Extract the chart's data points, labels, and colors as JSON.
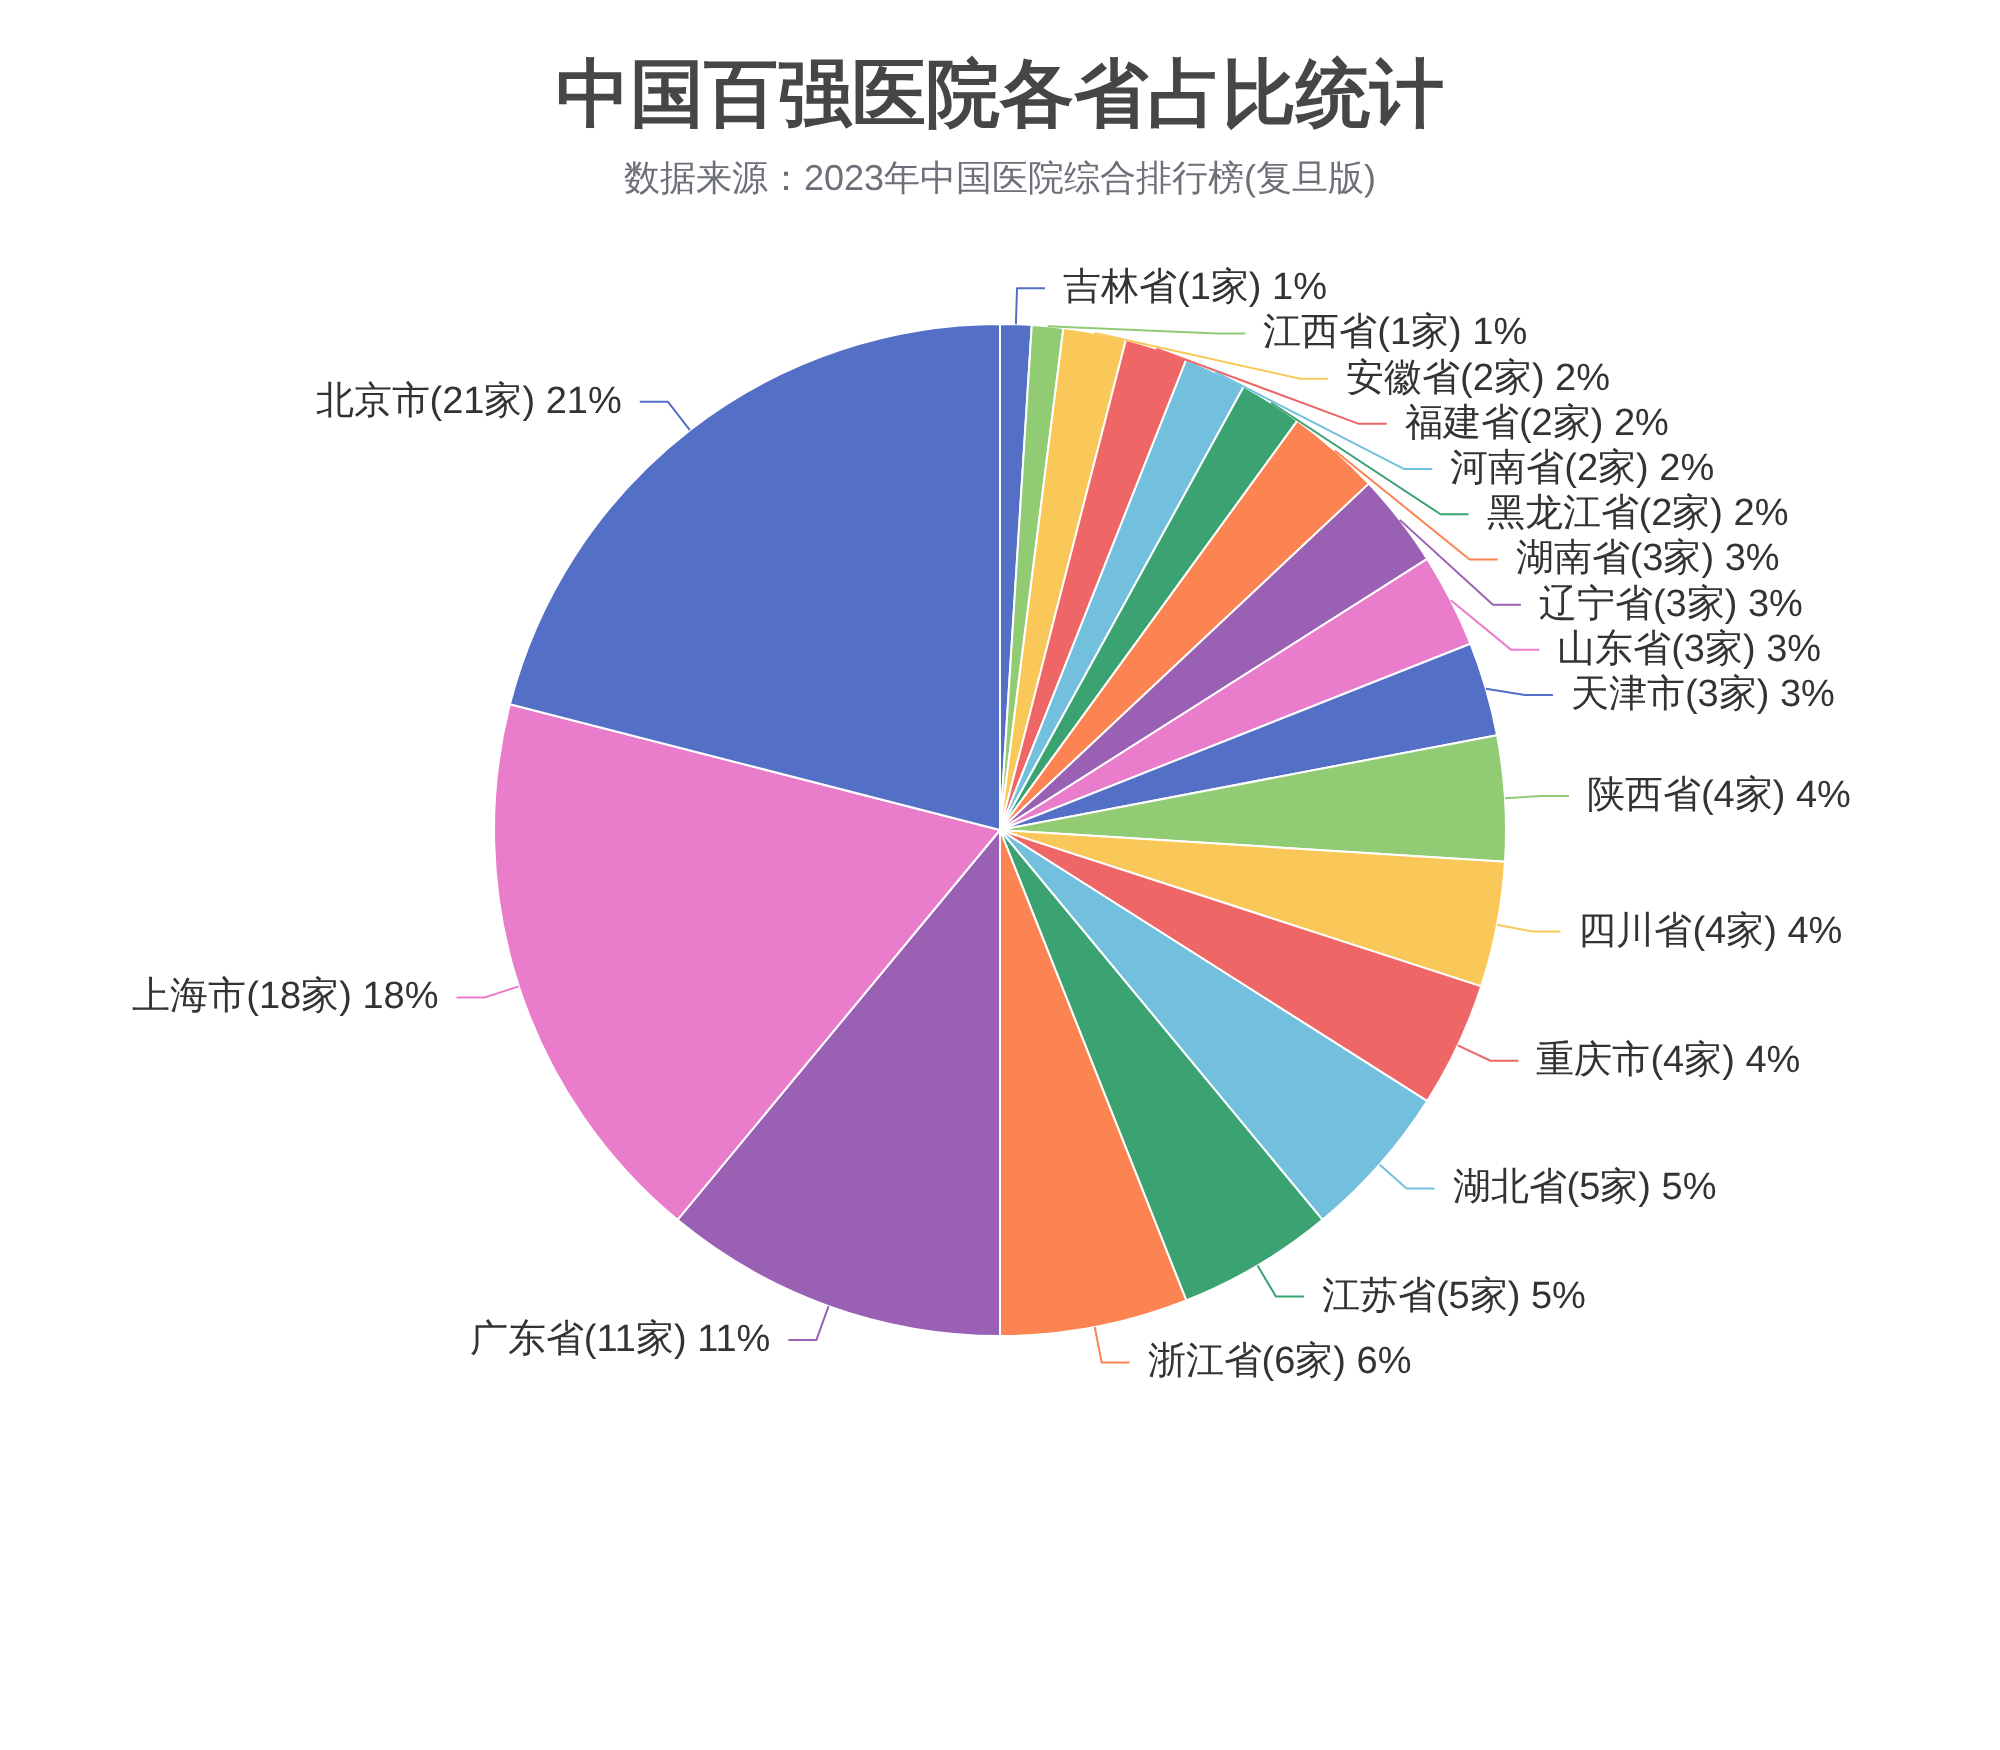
{
  "chart_data": {
    "type": "pie",
    "title": "中国百强医院各省占比统计",
    "subtitle": "数据来源：2023年中国医院综合排行榜(复旦版)",
    "categories": [
      "吉林省(1家)",
      "江西省(1家)",
      "安徽省(2家)",
      "福建省(2家)",
      "河南省(2家)",
      "黑龙江省(2家)",
      "湖南省(3家)",
      "辽宁省(3家)",
      "山东省(3家)",
      "天津市(3家)",
      "陕西省(4家)",
      "四川省(4家)",
      "重庆市(4家)",
      "湖北省(5家)",
      "江苏省(5家)",
      "浙江省(6家)",
      "广东省(11家)",
      "上海市(18家)",
      "北京市(21家)"
    ],
    "values": [
      1,
      1,
      2,
      2,
      2,
      2,
      3,
      3,
      3,
      3,
      4,
      4,
      4,
      5,
      5,
      6,
      11,
      18,
      21
    ],
    "value_labels": [
      "1%",
      "1%",
      "2%",
      "2%",
      "2%",
      "2%",
      "3%",
      "3%",
      "3%",
      "3%",
      "4%",
      "4%",
      "4%",
      "5%",
      "5%",
      "6%",
      "11%",
      "18%",
      "21%"
    ],
    "colors": [
      "#5470c6",
      "#91cc75",
      "#fac858",
      "#ee6666",
      "#73c0de",
      "#3ba272",
      "#fc8452",
      "#9a60b4",
      "#ea7ccc",
      "#5470c6",
      "#91cc75",
      "#fac858",
      "#ee6666",
      "#73c0de",
      "#3ba272",
      "#fc8452",
      "#9a60b4",
      "#ea7ccc",
      "#5470c6"
    ]
  }
}
